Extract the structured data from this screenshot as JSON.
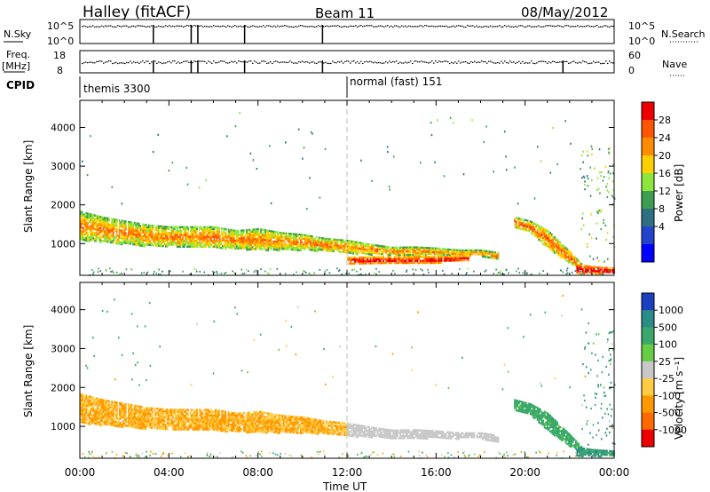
{
  "header": {
    "title": "Halley (fitACF)",
    "beam": "Beam 11",
    "date": "08/May/2012"
  },
  "strips": {
    "nsky_label": "N.Sky",
    "nsky_ticks": [
      "10^5",
      "10^0"
    ],
    "nsearch_label": "N.Search",
    "nsearch_ticks": [
      "10^5",
      "10^0"
    ],
    "freq_label": "Freq.",
    "freq_unit": "[MHz]",
    "freq_ticks": [
      "18",
      "8"
    ],
    "nave_label": "Nave",
    "nave_ticks": [
      "60",
      "0"
    ],
    "cpid_label": "CPID",
    "cpid_modes": [
      "themis 3300",
      "normal (fast) 151"
    ]
  },
  "x_axis": {
    "label": "Time UT",
    "ticks": [
      "00:00",
      "04:00",
      "08:00",
      "12:00",
      "16:00",
      "20:00",
      "00:00"
    ]
  },
  "chart_data": [
    {
      "type": "heatmap",
      "title": "",
      "xlabel": "",
      "ylabel": "Slant Range [km]",
      "x_range_hours": [
        0,
        24
      ],
      "ylim": [
        180,
        4700
      ],
      "y_ticks": [
        1000,
        2000,
        3000,
        4000
      ],
      "colorbar": {
        "label": "Power [dB]",
        "ticks": [
          "28",
          "24",
          "20",
          "16",
          "12",
          "8",
          "4"
        ],
        "colors": [
          "#ee0000",
          "#ff5500",
          "#ff8c00",
          "#ffcf00",
          "#8ce63c",
          "#3c9e50",
          "#2f6f82",
          "#2244cc",
          "#0000ff"
        ]
      },
      "echo_bands": [
        {
          "name": "main",
          "x": [
            0,
            1,
            2,
            3,
            4,
            5,
            6,
            7,
            8,
            9,
            10,
            11,
            12,
            13,
            14,
            15,
            16,
            17,
            18,
            18.8
          ],
          "lo": [
            1100,
            1050,
            1000,
            950,
            950,
            930,
            900,
            880,
            850,
            850,
            850,
            820,
            760,
            740,
            720,
            700,
            720,
            700,
            700,
            600
          ],
          "hi": [
            1850,
            1700,
            1600,
            1500,
            1450,
            1450,
            1450,
            1350,
            1400,
            1300,
            1250,
            1150,
            1100,
            1000,
            920,
            930,
            900,
            850,
            850,
            780
          ],
          "level": 18
        },
        {
          "name": "near-range",
          "x": [
            12,
            14,
            16,
            17.5
          ],
          "lo": [
            500,
            500,
            520,
            600
          ],
          "hi": [
            660,
            680,
            680,
            700
          ],
          "level": 26
        },
        {
          "name": "dusk-streak",
          "x": [
            19.5,
            20.2,
            21,
            22,
            22.5
          ],
          "lo": [
            1450,
            1300,
            900,
            500,
            350
          ],
          "hi": [
            1700,
            1600,
            1350,
            800,
            500
          ],
          "level": 20
        },
        {
          "name": "late-near",
          "x": [
            22.3,
            23,
            24
          ],
          "lo": [
            250,
            250,
            250
          ],
          "hi": [
            480,
            420,
            380
          ],
          "level": 28
        }
      ]
    },
    {
      "type": "heatmap",
      "title": "",
      "xlabel": "Time UT",
      "ylabel": "Slant Range [km]",
      "x_range_hours": [
        0,
        24
      ],
      "ylim": [
        180,
        4700
      ],
      "y_ticks": [
        1000,
        2000,
        3000,
        4000
      ],
      "colorbar": {
        "label": "Velocity [m s⁻¹]",
        "ticks": [
          "1000",
          "500",
          "100",
          "25",
          "-25",
          "-100",
          "-500",
          "-1000"
        ],
        "colors": [
          "#1a3fbf",
          "#2b8c8a",
          "#3aa86a",
          "#66cc44",
          "#c8c8c8",
          "#ffcc44",
          "#ff9900",
          "#ff6a00",
          "#ee0000"
        ]
      },
      "echo_bands": [
        {
          "name": "main",
          "x": [
            0,
            1,
            2,
            3,
            4,
            5,
            6,
            7,
            8,
            9,
            10,
            11,
            12
          ],
          "lo": [
            1100,
            1050,
            1000,
            950,
            950,
            930,
            900,
            880,
            850,
            850,
            850,
            820,
            760
          ],
          "hi": [
            1850,
            1700,
            1600,
            1500,
            1450,
            1450,
            1450,
            1350,
            1400,
            1300,
            1250,
            1150,
            1100
          ],
          "velocity": -100
        },
        {
          "name": "grey-zone",
          "x": [
            12,
            13,
            14,
            15,
            16,
            17,
            18,
            18.8
          ],
          "lo": [
            760,
            740,
            720,
            700,
            720,
            700,
            700,
            600
          ],
          "hi": [
            1100,
            1000,
            920,
            930,
            900,
            850,
            850,
            780
          ],
          "velocity": 0
        },
        {
          "name": "dusk-streak",
          "x": [
            19.5,
            20.2,
            21,
            22,
            22.5
          ],
          "lo": [
            1450,
            1300,
            900,
            500,
            350
          ],
          "hi": [
            1700,
            1600,
            1350,
            800,
            500
          ],
          "velocity": 150
        },
        {
          "name": "late-near",
          "x": [
            22.3,
            23,
            24
          ],
          "lo": [
            250,
            250,
            250
          ],
          "hi": [
            480,
            420,
            380
          ],
          "velocity": 500
        }
      ]
    }
  ],
  "colors": {
    "grid_dash": "#bbbbbb",
    "axis": "#000000"
  }
}
